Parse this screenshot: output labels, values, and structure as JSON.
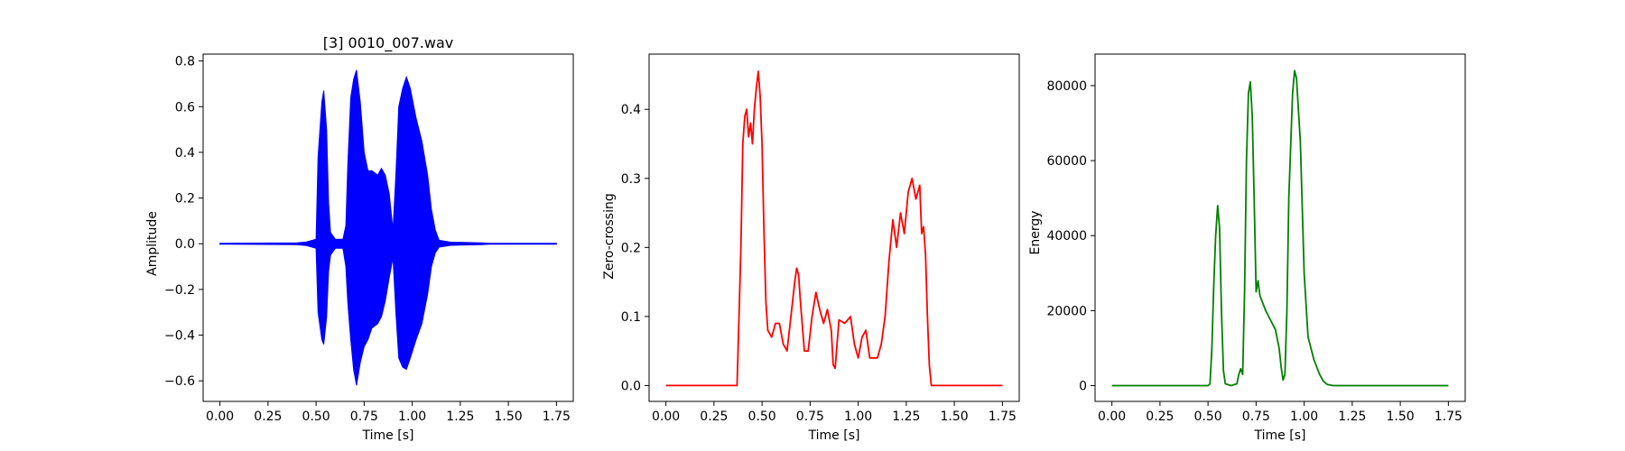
{
  "chart_data": [
    {
      "type": "line",
      "title": "[3] 0010_007.wav",
      "xlabel": "Time [s]",
      "ylabel": "Amplitude",
      "xlim": [
        -0.0875,
        1.8375
      ],
      "ylim": [
        -0.69,
        0.83
      ],
      "xticks": [
        0.0,
        0.25,
        0.5,
        0.75,
        1.0,
        1.25,
        1.5,
        1.75
      ],
      "xtick_labels": [
        "0.00",
        "0.25",
        "0.50",
        "0.75",
        "1.00",
        "1.25",
        "1.50",
        "1.75"
      ],
      "yticks": [
        -0.6,
        -0.4,
        -0.2,
        0.0,
        0.2,
        0.4,
        0.6,
        0.8
      ],
      "ytick_labels": [
        "−0.6",
        "−0.4",
        "−0.2",
        "0.0",
        "0.2",
        "0.4",
        "0.6",
        "0.8"
      ],
      "color": "#0000ff",
      "grid": false,
      "series": [
        {
          "style": "envelope",
          "upper": [
            [
              0.0,
              0.002
            ],
            [
              0.4,
              0.004
            ],
            [
              0.45,
              0.008
            ],
            [
              0.5,
              0.02
            ],
            [
              0.51,
              0.38
            ],
            [
              0.53,
              0.62
            ],
            [
              0.54,
              0.67
            ],
            [
              0.555,
              0.5
            ],
            [
              0.565,
              0.18
            ],
            [
              0.575,
              0.05
            ],
            [
              0.6,
              0.02
            ],
            [
              0.64,
              0.02
            ],
            [
              0.655,
              0.08
            ],
            [
              0.665,
              0.35
            ],
            [
              0.68,
              0.64
            ],
            [
              0.695,
              0.72
            ],
            [
              0.71,
              0.76
            ],
            [
              0.73,
              0.62
            ],
            [
              0.75,
              0.4
            ],
            [
              0.77,
              0.32
            ],
            [
              0.79,
              0.32
            ],
            [
              0.82,
              0.3
            ],
            [
              0.84,
              0.33
            ],
            [
              0.86,
              0.3
            ],
            [
              0.88,
              0.22
            ],
            [
              0.9,
              0.06
            ],
            [
              0.915,
              0.3
            ],
            [
              0.93,
              0.6
            ],
            [
              0.95,
              0.68
            ],
            [
              0.97,
              0.73
            ],
            [
              0.99,
              0.68
            ],
            [
              1.02,
              0.55
            ],
            [
              1.05,
              0.45
            ],
            [
              1.08,
              0.3
            ],
            [
              1.1,
              0.15
            ],
            [
              1.12,
              0.06
            ],
            [
              1.14,
              0.015
            ],
            [
              1.2,
              0.007
            ],
            [
              1.36,
              0.004
            ],
            [
              1.4,
              0.002
            ],
            [
              1.75,
              0.002
            ]
          ],
          "lower": [
            [
              0.0,
              -0.002
            ],
            [
              0.4,
              -0.004
            ],
            [
              0.45,
              -0.008
            ],
            [
              0.5,
              -0.02
            ],
            [
              0.51,
              -0.3
            ],
            [
              0.53,
              -0.42
            ],
            [
              0.54,
              -0.44
            ],
            [
              0.555,
              -0.32
            ],
            [
              0.565,
              -0.12
            ],
            [
              0.575,
              -0.05
            ],
            [
              0.6,
              -0.02
            ],
            [
              0.64,
              -0.02
            ],
            [
              0.655,
              -0.1
            ],
            [
              0.665,
              -0.26
            ],
            [
              0.68,
              -0.42
            ],
            [
              0.695,
              -0.55
            ],
            [
              0.71,
              -0.62
            ],
            [
              0.73,
              -0.52
            ],
            [
              0.75,
              -0.45
            ],
            [
              0.77,
              -0.42
            ],
            [
              0.79,
              -0.37
            ],
            [
              0.82,
              -0.35
            ],
            [
              0.84,
              -0.32
            ],
            [
              0.86,
              -0.25
            ],
            [
              0.88,
              -0.15
            ],
            [
              0.9,
              -0.06
            ],
            [
              0.915,
              -0.3
            ],
            [
              0.93,
              -0.5
            ],
            [
              0.95,
              -0.54
            ],
            [
              0.97,
              -0.55
            ],
            [
              0.99,
              -0.5
            ],
            [
              1.02,
              -0.42
            ],
            [
              1.05,
              -0.35
            ],
            [
              1.08,
              -0.22
            ],
            [
              1.1,
              -0.1
            ],
            [
              1.12,
              -0.04
            ],
            [
              1.14,
              -0.015
            ],
            [
              1.2,
              -0.007
            ],
            [
              1.36,
              -0.004
            ],
            [
              1.4,
              -0.002
            ],
            [
              1.75,
              -0.002
            ]
          ]
        }
      ]
    },
    {
      "type": "line",
      "title": "",
      "xlabel": "Time [s]",
      "ylabel": "Zero-crossing",
      "xlim": [
        -0.0875,
        1.8375
      ],
      "ylim": [
        -0.023,
        0.48
      ],
      "xticks": [
        0.0,
        0.25,
        0.5,
        0.75,
        1.0,
        1.25,
        1.5,
        1.75
      ],
      "xtick_labels": [
        "0.00",
        "0.25",
        "0.50",
        "0.75",
        "1.00",
        "1.25",
        "1.50",
        "1.75"
      ],
      "yticks": [
        0.0,
        0.1,
        0.2,
        0.3,
        0.4
      ],
      "ytick_labels": [
        "0.0",
        "0.1",
        "0.2",
        "0.3",
        "0.4"
      ],
      "color": "#ff0000",
      "grid": false,
      "series": [
        {
          "style": "line",
          "points": [
            [
              0.0,
              0.0
            ],
            [
              0.37,
              0.0
            ],
            [
              0.38,
              0.1
            ],
            [
              0.39,
              0.2
            ],
            [
              0.4,
              0.35
            ],
            [
              0.41,
              0.39
            ],
            [
              0.42,
              0.4
            ],
            [
              0.43,
              0.36
            ],
            [
              0.44,
              0.38
            ],
            [
              0.45,
              0.35
            ],
            [
              0.46,
              0.4
            ],
            [
              0.47,
              0.43
            ],
            [
              0.48,
              0.455
            ],
            [
              0.49,
              0.42
            ],
            [
              0.5,
              0.35
            ],
            [
              0.51,
              0.22
            ],
            [
              0.52,
              0.12
            ],
            [
              0.53,
              0.08
            ],
            [
              0.55,
              0.07
            ],
            [
              0.57,
              0.09
            ],
            [
              0.59,
              0.09
            ],
            [
              0.61,
              0.06
            ],
            [
              0.63,
              0.05
            ],
            [
              0.65,
              0.1
            ],
            [
              0.67,
              0.15
            ],
            [
              0.68,
              0.17
            ],
            [
              0.69,
              0.16
            ],
            [
              0.7,
              0.12
            ],
            [
              0.72,
              0.05
            ],
            [
              0.74,
              0.05
            ],
            [
              0.76,
              0.1
            ],
            [
              0.78,
              0.135
            ],
            [
              0.8,
              0.11
            ],
            [
              0.82,
              0.09
            ],
            [
              0.84,
              0.11
            ],
            [
              0.86,
              0.08
            ],
            [
              0.87,
              0.03
            ],
            [
              0.88,
              0.025
            ],
            [
              0.89,
              0.06
            ],
            [
              0.9,
              0.095
            ],
            [
              0.93,
              0.09
            ],
            [
              0.96,
              0.1
            ],
            [
              0.98,
              0.06
            ],
            [
              1.0,
              0.04
            ],
            [
              1.02,
              0.07
            ],
            [
              1.04,
              0.08
            ],
            [
              1.06,
              0.04
            ],
            [
              1.08,
              0.04
            ],
            [
              1.1,
              0.04
            ],
            [
              1.12,
              0.06
            ],
            [
              1.14,
              0.1
            ],
            [
              1.16,
              0.18
            ],
            [
              1.18,
              0.24
            ],
            [
              1.2,
              0.2
            ],
            [
              1.22,
              0.25
            ],
            [
              1.24,
              0.22
            ],
            [
              1.26,
              0.28
            ],
            [
              1.28,
              0.3
            ],
            [
              1.3,
              0.27
            ],
            [
              1.32,
              0.29
            ],
            [
              1.33,
              0.22
            ],
            [
              1.34,
              0.23
            ],
            [
              1.35,
              0.19
            ],
            [
              1.36,
              0.1
            ],
            [
              1.37,
              0.03
            ],
            [
              1.38,
              0.0
            ],
            [
              1.75,
              0.0
            ]
          ]
        }
      ]
    },
    {
      "type": "line",
      "title": "",
      "xlabel": "Time [s]",
      "ylabel": "Energy",
      "xlim": [
        -0.0875,
        1.8375
      ],
      "ylim": [
        -4200,
        88400
      ],
      "xticks": [
        0.0,
        0.25,
        0.5,
        0.75,
        1.0,
        1.25,
        1.5,
        1.75
      ],
      "xtick_labels": [
        "0.00",
        "0.25",
        "0.50",
        "0.75",
        "1.00",
        "1.25",
        "1.50",
        "1.75"
      ],
      "yticks": [
        0,
        20000,
        40000,
        60000,
        80000
      ],
      "ytick_labels": [
        "0",
        "20000",
        "40000",
        "60000",
        "80000"
      ],
      "color": "#008000",
      "grid": false,
      "series": [
        {
          "style": "line",
          "points": [
            [
              0.0,
              0
            ],
            [
              0.5,
              0
            ],
            [
              0.51,
              500
            ],
            [
              0.52,
              10000
            ],
            [
              0.53,
              27000
            ],
            [
              0.54,
              40000
            ],
            [
              0.55,
              48000
            ],
            [
              0.56,
              42000
            ],
            [
              0.57,
              20000
            ],
            [
              0.58,
              4000
            ],
            [
              0.59,
              500
            ],
            [
              0.62,
              0
            ],
            [
              0.65,
              500
            ],
            [
              0.66,
              3000
            ],
            [
              0.67,
              4500
            ],
            [
              0.68,
              3000
            ],
            [
              0.69,
              25000
            ],
            [
              0.7,
              60000
            ],
            [
              0.71,
              78000
            ],
            [
              0.72,
              81000
            ],
            [
              0.73,
              72000
            ],
            [
              0.74,
              50000
            ],
            [
              0.75,
              25000
            ],
            [
              0.76,
              28000
            ],
            [
              0.77,
              24000
            ],
            [
              0.8,
              20000
            ],
            [
              0.83,
              17000
            ],
            [
              0.85,
              15000
            ],
            [
              0.87,
              10000
            ],
            [
              0.88,
              5000
            ],
            [
              0.89,
              1500
            ],
            [
              0.9,
              3000
            ],
            [
              0.91,
              20000
            ],
            [
              0.92,
              50000
            ],
            [
              0.94,
              78000
            ],
            [
              0.95,
              84000
            ],
            [
              0.96,
              82000
            ],
            [
              0.98,
              65000
            ],
            [
              1.0,
              30000
            ],
            [
              1.02,
              13000
            ],
            [
              1.05,
              7000
            ],
            [
              1.08,
              3000
            ],
            [
              1.1,
              1200
            ],
            [
              1.12,
              300
            ],
            [
              1.15,
              0
            ],
            [
              1.75,
              0
            ]
          ]
        }
      ]
    }
  ]
}
